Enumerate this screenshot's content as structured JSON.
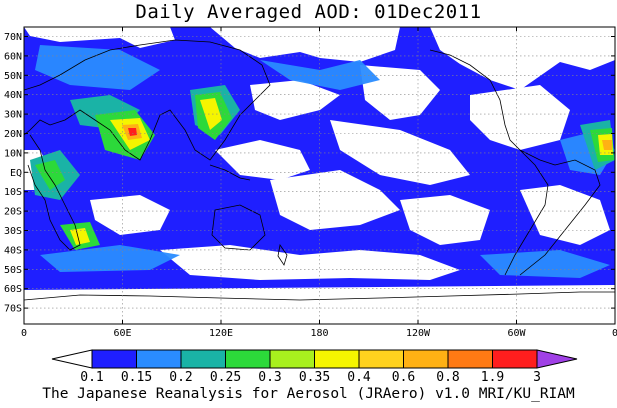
{
  "title": "Daily Averaged AOD: 01Dec2011",
  "caption": "The Japanese Reanalysis for Aerosol (JRAero) v1.0 MRI/KU_RIAM",
  "map": {
    "lat_labels": [
      "70N",
      "60N",
      "50N",
      "40N",
      "30N",
      "20N",
      "10N",
      "EQ",
      "10S",
      "20S",
      "30S",
      "40S",
      "50S",
      "60S",
      "70S"
    ],
    "lon_labels": [
      "0",
      "60E",
      "120E",
      "180",
      "120W",
      "60W",
      "0"
    ],
    "land_outline_color": "#000000",
    "grid_style": "dotted"
  },
  "colorbar": {
    "levels": [
      "0.1",
      "0.15",
      "0.2",
      "0.25",
      "0.3",
      "0.35",
      "0.4",
      "0.6",
      "0.8",
      "1.9",
      "3"
    ],
    "colors": [
      "#ffffff",
      "#1f1fff",
      "#2a8cff",
      "#1ab3a6",
      "#2cd93a",
      "#a8f01e",
      "#f5f500",
      "#ffd21e",
      "#ffb114",
      "#ff7a14",
      "#ff1e1e",
      "#a040e6"
    ]
  }
}
